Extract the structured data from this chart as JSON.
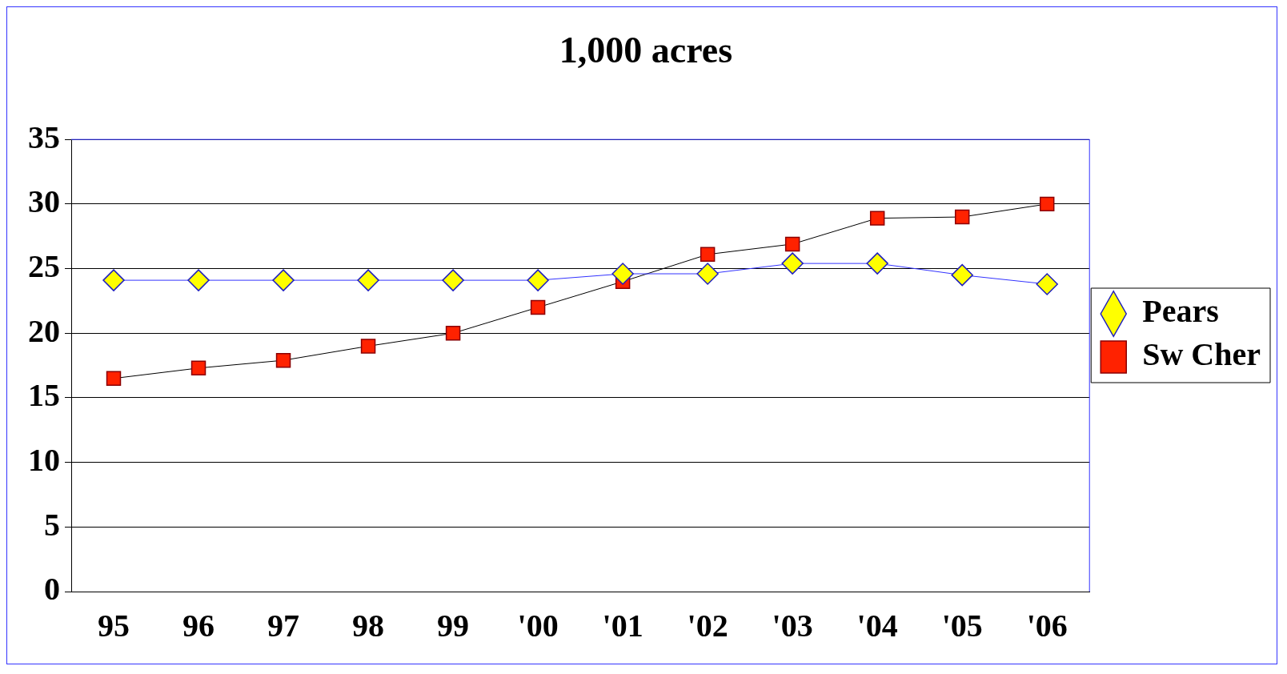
{
  "chart_data": {
    "type": "line",
    "title": "1,000 acres",
    "categories": [
      "95",
      "96",
      "97",
      "98",
      "99",
      "'00",
      "'01",
      "'02",
      "'03",
      "'04",
      "'05",
      "'06"
    ],
    "series": [
      {
        "name": "Pears",
        "color": "#ffff00",
        "marker": "diamond",
        "values": [
          24.1,
          24.1,
          24.1,
          24.1,
          24.1,
          24.1,
          24.6,
          24.6,
          25.4,
          25.4,
          24.5,
          23.8
        ]
      },
      {
        "name": "Sw Cher",
        "color": "#ff2200",
        "marker": "square",
        "values": [
          16.5,
          17.3,
          17.9,
          19.0,
          20.0,
          22.0,
          24.0,
          26.1,
          26.9,
          28.9,
          29.0,
          30.0
        ]
      }
    ],
    "ylim": [
      0,
      35
    ],
    "yticks": [
      0,
      5,
      10,
      15,
      20,
      25,
      30,
      35
    ],
    "grid": "y",
    "legend": "right",
    "line_style": "solid"
  }
}
